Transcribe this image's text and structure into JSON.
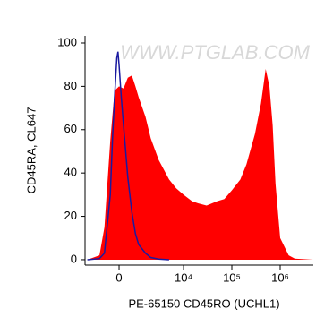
{
  "chart_data": {
    "type": "histogram-overlay",
    "watermark": "WWW.PTGLAB.COM",
    "x_label": "PE-65150 CD45RO (UCHL1)",
    "y_label": "CD45RA, CL647",
    "xscale": "biexponential",
    "xlim": [
      -2260,
      4840000
    ],
    "xticks": [
      0,
      {
        "value": 10000,
        "label": "10⁴"
      },
      {
        "value": 100000,
        "label": "10⁵"
      },
      {
        "value": 1000000,
        "label": "10⁶"
      }
    ],
    "ylim": [
      -2.5,
      103.3
    ],
    "yticks": [
      0,
      20,
      40,
      60,
      80,
      100
    ],
    "series": [
      {
        "color": "#ff0000",
        "fill": true,
        "x": [
          -2000,
          -1000,
          -700,
          -400,
          -200,
          0,
          200,
          400,
          600,
          800,
          1000,
          1500,
          2000,
          3000,
          5000,
          7000,
          10000,
          15000,
          20000,
          30000,
          50000,
          70000,
          100000,
          150000,
          200000,
          300000,
          400000,
          500000,
          600000,
          700000,
          800000,
          1000000,
          1500000,
          2000000,
          4800000
        ],
        "values": [
          0,
          2,
          15,
          55,
          78,
          80,
          79,
          84,
          85,
          80,
          75,
          66,
          56,
          46,
          37,
          33,
          30,
          27,
          26,
          25,
          27,
          28,
          32,
          37,
          44,
          58,
          72,
          88,
          80,
          62,
          35,
          10,
          2,
          0.5,
          0
        ]
      },
      {
        "color": "#1a1aa0",
        "fill": false,
        "x": [
          -2000,
          -1000,
          -700,
          -400,
          -300,
          -200,
          -100,
          -50,
          0,
          100,
          200,
          400,
          600,
          800,
          1000,
          1500,
          2000,
          3000,
          5000
        ],
        "values": [
          0,
          0.5,
          3,
          30,
          55,
          75,
          93,
          96,
          90,
          75,
          62,
          38,
          22,
          12,
          7,
          3,
          1,
          0.3,
          0
        ]
      }
    ]
  }
}
